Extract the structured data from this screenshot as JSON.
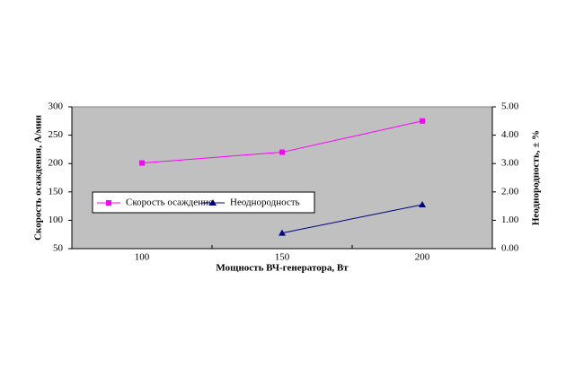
{
  "chart_data": {
    "type": "line",
    "x_label": "Мощность ВЧ-генератора, Вт",
    "y_label": "Скорость осаждения, А/мин",
    "y2_label": "Неоднородность, ± %",
    "categories": [
      "100",
      "150",
      "200"
    ],
    "series": [
      {
        "name": "Скорость осаждения",
        "color": "#ff00ff",
        "marker": "square",
        "values": [
          201,
          220,
          275
        ]
      },
      {
        "name": "Неоднородность",
        "color": "#000080",
        "marker": "triangle",
        "axis": "y2",
        "values": [
          null,
          0.55,
          1.55
        ]
      }
    ],
    "ylim": [
      50,
      300
    ],
    "yticks": [
      50,
      100,
      150,
      200,
      250,
      300
    ],
    "y2lim": [
      0,
      5
    ],
    "y2ticks": [
      {
        "value": 0,
        "label": "0.00"
      },
      {
        "value": 1,
        "label": "1.00"
      },
      {
        "value": 2,
        "label": "2.00"
      },
      {
        "value": 3,
        "label": "3.00"
      },
      {
        "value": 4,
        "label": "4.00"
      },
      {
        "value": 5,
        "label": "5.00"
      }
    ],
    "plot_background": "#c0c0c0"
  }
}
